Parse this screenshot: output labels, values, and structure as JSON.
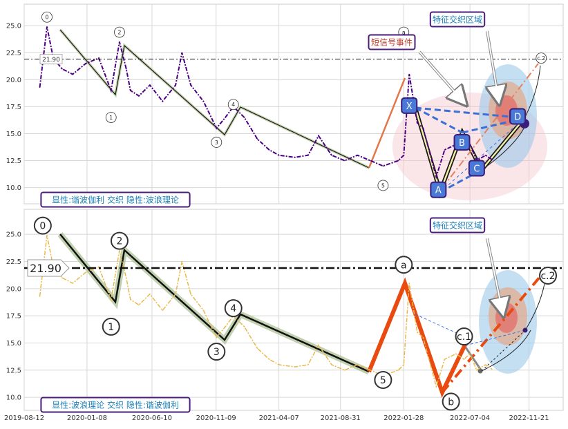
{
  "chart_data": [
    {
      "type": "line",
      "panel": "top",
      "ylim": [
        8.5,
        27.0
      ],
      "yticks": [
        10.0,
        12.5,
        15.0,
        17.5,
        20.0,
        22.5,
        25.0
      ],
      "ytick_labels": [
        "10.0",
        "12.5",
        "15.0",
        "17.5",
        "20.0",
        "22.5",
        "25.0"
      ],
      "grid": true,
      "series": [
        {
          "type": "price",
          "color": "#4b0082",
          "x": [
            "2019-09-18",
            "2019-10-05",
            "2019-10-20",
            "2019-11-10",
            "2019-12-05",
            "2020-01-05",
            "2020-02-05",
            "2020-03-05",
            "2020-03-25",
            "2020-04-10",
            "2020-04-20",
            "2020-05-10",
            "2020-06-05",
            "2020-07-05",
            "2020-08-05",
            "2020-08-20",
            "2020-09-10",
            "2020-10-10",
            "2020-11-10",
            "2020-12-01",
            "2020-12-20",
            "2021-01-15",
            "2021-02-15",
            "2021-03-15",
            "2021-04-07",
            "2021-05-15",
            "2021-06-15",
            "2021-07-10",
            "2021-08-10",
            "2021-09-10",
            "2021-10-10",
            "2021-11-10",
            "2021-12-10",
            "2022-01-01",
            "2022-01-15",
            "2022-01-28",
            "2022-02-10",
            "2022-03-01",
            "2022-03-15",
            "2022-04-15",
            "2022-05-05",
            "2022-06-01",
            "2022-06-20",
            "2022-07-04",
            "2022-07-20",
            "2022-08-10",
            "2022-08-25"
          ],
          "y": [
            19.3,
            24.9,
            22.0,
            21.0,
            20.5,
            21.5,
            22.0,
            19.0,
            23.5,
            21.0,
            19.0,
            18.5,
            19.5,
            18.0,
            19.5,
            22.5,
            19.5,
            18.0,
            15.5,
            16.5,
            17.5,
            16.5,
            14.5,
            13.5,
            13.0,
            12.8,
            13.0,
            14.8,
            13.0,
            12.5,
            13.0,
            12.5,
            12.0,
            12.3,
            12.5,
            13.0,
            20.5,
            16.0,
            15.5,
            11.0,
            13.5,
            14.0,
            13.5,
            14.0,
            12.5,
            13.0,
            12.6
          ]
        }
      ],
      "wave_labels": [
        {
          "text": "0",
          "x": "2019-10-05",
          "y": 25.8
        },
        {
          "text": "1",
          "x": "2020-03-05",
          "y": 16.5
        },
        {
          "text": "2",
          "x": "2020-03-25",
          "y": 24.4
        },
        {
          "text": "3",
          "x": "2020-11-10",
          "y": 14.2
        },
        {
          "text": "4",
          "x": "2020-12-20",
          "y": 17.7
        },
        {
          "text": "5",
          "x": "2021-12-10",
          "y": 10.2
        },
        {
          "text": "a",
          "x": "2022-01-28",
          "y": 24.4
        },
        {
          "text": "c.2",
          "x": "2022-12-20",
          "y": 22.0
        }
      ],
      "pattern_labels": [
        {
          "text": "X",
          "x": "2022-02-10",
          "y": 17.6
        },
        {
          "text": "A",
          "x": "2022-04-20",
          "y": 9.8
        },
        {
          "text": "B",
          "x": "2022-06-15",
          "y": 14.2
        },
        {
          "text": "C",
          "x": "2022-07-20",
          "y": 11.8
        },
        {
          "text": "D",
          "x": "2022-10-25",
          "y": 16.6
        }
      ],
      "hline": {
        "value": 21.9,
        "label": "21.90"
      },
      "annotations": [
        "特征交织区域",
        "短信号事件"
      ],
      "caption": "显性:谐波伽利 交织 隐性:波浪理论"
    },
    {
      "type": "line",
      "panel": "bottom",
      "xlim": [
        "2019-08-12",
        "2023-02-10"
      ],
      "ylim": [
        8.8,
        27.3
      ],
      "xticks": [
        "2019-08-12",
        "2020-01-08",
        "2020-06-10",
        "2020-11-09",
        "2021-04-07",
        "2021-08-31",
        "2022-01-28",
        "2022-07-04",
        "2022-11-21"
      ],
      "yticks": [
        10.0,
        12.5,
        15.0,
        17.5,
        20.0,
        22.5,
        25.0
      ],
      "ytick_labels": [
        "10.0",
        "12.5",
        "15.0",
        "17.5",
        "20.0",
        "22.5",
        "25.0"
      ],
      "grid": true,
      "series": [
        {
          "type": "price",
          "color": "#e8b84a",
          "x": [
            "2019-09-18",
            "2019-10-05",
            "2019-10-20",
            "2019-11-10",
            "2019-12-05",
            "2020-01-05",
            "2020-02-05",
            "2020-03-05",
            "2020-03-25",
            "2020-04-10",
            "2020-04-20",
            "2020-05-10",
            "2020-06-05",
            "2020-07-05",
            "2020-08-05",
            "2020-08-20",
            "2020-09-10",
            "2020-10-10",
            "2020-11-10",
            "2020-12-01",
            "2020-12-20",
            "2021-01-15",
            "2021-02-15",
            "2021-03-15",
            "2021-04-07",
            "2021-05-15",
            "2021-06-15",
            "2021-07-10",
            "2021-08-10",
            "2021-09-10",
            "2021-10-10",
            "2021-11-10",
            "2021-12-10",
            "2022-01-01",
            "2022-01-15",
            "2022-01-28",
            "2022-02-10",
            "2022-03-01",
            "2022-03-15",
            "2022-04-15",
            "2022-05-05",
            "2022-06-01",
            "2022-06-20",
            "2022-07-04",
            "2022-07-20",
            "2022-08-10",
            "2022-08-25"
          ],
          "y": [
            19.3,
            24.9,
            22.0,
            21.0,
            20.5,
            21.5,
            22.0,
            19.0,
            23.5,
            21.0,
            19.0,
            18.5,
            19.5,
            18.0,
            19.5,
            22.5,
            19.5,
            18.0,
            15.5,
            16.5,
            17.5,
            16.5,
            14.5,
            13.5,
            13.0,
            12.8,
            13.0,
            14.8,
            13.0,
            12.5,
            13.0,
            12.5,
            12.0,
            12.3,
            12.5,
            13.0,
            20.5,
            16.0,
            15.5,
            11.0,
            13.5,
            14.0,
            13.5,
            14.0,
            12.5,
            13.0,
            12.6
          ]
        }
      ],
      "wave_labels": [
        {
          "text": "0",
          "x": "2019-09-25",
          "y": 25.8
        },
        {
          "text": "1",
          "x": "2020-03-05",
          "y": 16.5
        },
        {
          "text": "2",
          "x": "2020-03-25",
          "y": 24.4
        },
        {
          "text": "3",
          "x": "2020-11-10",
          "y": 14.2
        },
        {
          "text": "4",
          "x": "2020-12-20",
          "y": 18.2
        },
        {
          "text": "5",
          "x": "2021-12-10",
          "y": 11.6
        },
        {
          "text": "a",
          "x": "2022-01-28",
          "y": 22.2
        },
        {
          "text": "b",
          "x": "2022-05-20",
          "y": 9.6
        },
        {
          "text": "c.1",
          "x": "2022-06-20",
          "y": 15.6
        },
        {
          "text": "c.2",
          "x": "2023-01-05",
          "y": 21.2
        }
      ],
      "hline": {
        "value": 21.9,
        "label": "21.90"
      },
      "annotations": [
        "特征交织区域"
      ],
      "caption": "显性:波浪理论 交织 隐性:谐波伽利"
    }
  ]
}
